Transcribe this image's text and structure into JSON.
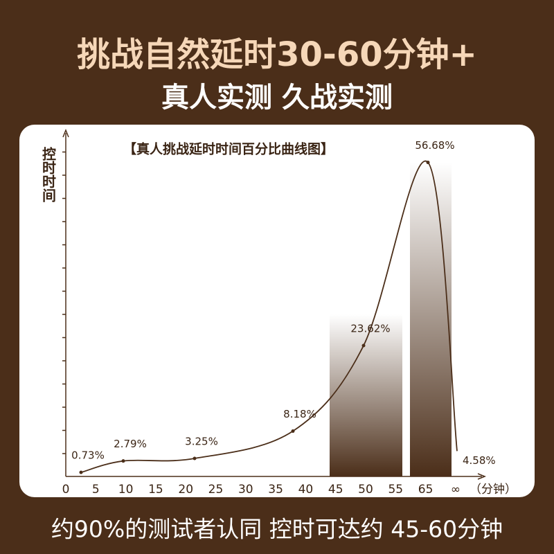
{
  "header": {
    "title": "挑战自然延时30-60分钟+",
    "subtitle": "真人实测 久战实测"
  },
  "chart_data": {
    "type": "line",
    "title": "【真人挑战延时时间百分比曲线图】",
    "y_label": "控时时间",
    "x_unit": "（分钟）",
    "x_tick_labels": [
      "0",
      "5",
      "10",
      "15",
      "20",
      "25",
      "30",
      "35",
      "40",
      "45",
      "50",
      "55",
      "65",
      "∞"
    ],
    "values": [
      0.73,
      2.79,
      3.25,
      8.18,
      23.62,
      56.68,
      4.58
    ],
    "value_labels": [
      "0.73%",
      "2.79%",
      "3.25%",
      "8.18%",
      "23.62%",
      "56.68%",
      "4.58%"
    ],
    "color": "#4b2e19",
    "ylim": [
      0,
      60
    ]
  },
  "footer": {
    "text": "约90%的测试者认同 控时可达约 45-60分钟"
  }
}
